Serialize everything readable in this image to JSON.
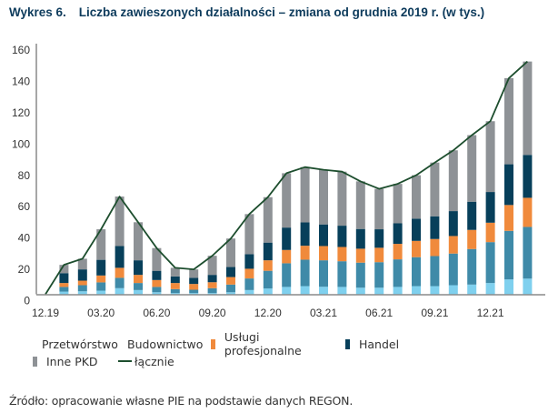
{
  "title": {
    "number": "Wykres 6.",
    "text": "Liczba zawieszonych działalności – zmiana od grudnia 2019 r. (w tys.)"
  },
  "source": "Źródło: opracowanie własne PIE na podstawie danych REGON.",
  "colors": {
    "przetworstwo": "#7fd0ee",
    "budownictwo": "#3f8aa8",
    "uslugi": "#f08a3c",
    "handel": "#073f5a",
    "inne": "#8e9296",
    "lacznie": "#1d4e2e",
    "axis": "#8a8a8a"
  },
  "legend": [
    {
      "key": "przetworstwo",
      "label": "Przetwórstwo",
      "kind": "bar"
    },
    {
      "key": "budownictwo",
      "label": "Budownictwo",
      "kind": "bar"
    },
    {
      "key": "uslugi",
      "label": "Usługi profesjonalne",
      "kind": "bar"
    },
    {
      "key": "handel",
      "label": "Handel",
      "kind": "bar"
    },
    {
      "key": "inne",
      "label": "Inne PKD",
      "kind": "bar"
    },
    {
      "key": "lacznie",
      "label": "łącznie",
      "kind": "line"
    }
  ],
  "chart_data": {
    "type": "bar",
    "stacked": true,
    "title": "Liczba zawieszonych działalności – zmiana od grudnia 2019 r. (w tys.)",
    "xlabel": "",
    "ylabel": "",
    "ylim": [
      0,
      160
    ],
    "yticks": [
      0,
      20,
      40,
      60,
      80,
      100,
      120,
      140,
      160
    ],
    "grid": false,
    "legend_position": "bottom",
    "categories": [
      "12.19",
      "01.20",
      "02.20",
      "03.20",
      "04.20",
      "05.20",
      "06.20",
      "07.20",
      "08.20",
      "09.20",
      "10.20",
      "11.20",
      "12.20",
      "01.21",
      "02.21",
      "03.21",
      "04.21",
      "05.21",
      "06.21",
      "07.21",
      "08.21",
      "09.21",
      "10.21",
      "11.21",
      "12.21",
      "01.22",
      "02.22"
    ],
    "xtick_labels": [
      "12.19",
      "03.20",
      "06.20",
      "09.20",
      "12.20",
      "03.21",
      "06.21",
      "09.21",
      "12.21"
    ],
    "series": [
      {
        "key": "przetworstwo",
        "name": "Przetwórstwo",
        "type": "bar",
        "values": [
          0,
          1.7,
          1.9,
          2.3,
          3.9,
          2.7,
          1.3,
          0.8,
          0.8,
          0.8,
          1.3,
          2.7,
          3.7,
          4.7,
          5.2,
          4.8,
          4.7,
          4.2,
          4.2,
          4.7,
          5.2,
          5.2,
          5.8,
          6.2,
          7.2,
          9.5,
          10.0
        ]
      },
      {
        "key": "budownictwo",
        "name": "Budownictwo",
        "type": "bar",
        "values": [
          0,
          3.0,
          3.9,
          5.3,
          6.6,
          4.5,
          3.4,
          2.5,
          2.1,
          3.1,
          4.9,
          7.4,
          11.3,
          15.1,
          16.9,
          16.9,
          16.4,
          16.0,
          16.3,
          17.6,
          18.5,
          19.2,
          20.2,
          22.7,
          26.1,
          31.0,
          33.0
        ]
      },
      {
        "key": "uslugi",
        "name": "Usługi profesjonalne",
        "type": "bar",
        "values": [
          0,
          2.5,
          2.9,
          4.4,
          6.4,
          5.2,
          4.4,
          3.9,
          3.7,
          3.8,
          4.8,
          6.2,
          6.7,
          8.5,
          8.9,
          9.1,
          9.1,
          8.9,
          9.2,
          9.9,
          10.4,
          10.9,
          11.2,
          12.2,
          12.4,
          16.5,
          18.6
        ]
      },
      {
        "key": "handel",
        "name": "Handel",
        "type": "bar",
        "values": [
          0,
          6.3,
          7.2,
          10.0,
          13.9,
          9.3,
          5.9,
          4.2,
          3.9,
          4.7,
          6.4,
          9.3,
          11.3,
          14.3,
          14.9,
          13.8,
          13.6,
          12.6,
          11.8,
          13.1,
          14.2,
          14.5,
          15.9,
          18.0,
          19.6,
          26.0,
          27.4
        ]
      },
      {
        "key": "inne",
        "name": "Inne PKD",
        "type": "bar",
        "values": [
          0,
          5.3,
          6.8,
          19.5,
          31.6,
          24.3,
          14.5,
          5.5,
          5.4,
          12.2,
          18.2,
          25.6,
          29.0,
          34.7,
          35.3,
          34.9,
          34.5,
          30.4,
          25.8,
          25.2,
          27.7,
          34.3,
          38.8,
          42.5,
          45.2,
          55.0,
          59.6
        ]
      },
      {
        "key": "lacznie",
        "name": "łącznie",
        "type": "line",
        "values": [
          0,
          18.8,
          22.7,
          41.5,
          62.4,
          46.0,
          29.5,
          16.9,
          15.9,
          24.6,
          35.6,
          51.2,
          62.0,
          77.3,
          81.2,
          79.5,
          78.3,
          72.1,
          67.3,
          70.5,
          76.0,
          84.1,
          91.9,
          101.6,
          110.5,
          138.0,
          148.6
        ]
      }
    ]
  }
}
